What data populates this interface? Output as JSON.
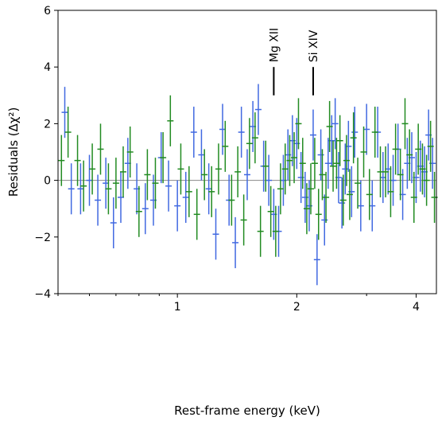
{
  "chart_data": {
    "type": "scatter",
    "xlabel": "Rest-frame energy (keV)",
    "ylabel": "Residuals (Δχ²)",
    "xscale": "log",
    "xlim": [
      0.5,
      4.5
    ],
    "ylim": [
      -4,
      6
    ],
    "xticks": [
      1,
      2,
      4
    ],
    "xtick_labels": [
      "1",
      "2",
      "4"
    ],
    "yticks": [
      -4,
      -2,
      0,
      2,
      4,
      6
    ],
    "ytick_labels": [
      "−4",
      "−2",
      "0",
      "2",
      "4",
      "6"
    ],
    "zero_line": 0,
    "grid": false,
    "legend": "none",
    "annotations": [
      {
        "label": "Mg XII",
        "x": 1.75,
        "y_bottom": 3.0,
        "y_top": 4.0
      },
      {
        "label": "Si XIV",
        "x": 2.2,
        "y_bottom": 3.0,
        "y_top": 4.0
      }
    ],
    "series": [
      {
        "color": "#4169e1",
        "points": [
          [
            0.52,
            2.4,
            0.9
          ],
          [
            0.54,
            -0.3,
            0.9
          ],
          [
            0.57,
            -0.3,
            0.9
          ],
          [
            0.6,
            0.0,
            0.9
          ],
          [
            0.63,
            -0.7,
            0.9
          ],
          [
            0.66,
            -0.1,
            0.9
          ],
          [
            0.69,
            -1.5,
            0.9
          ],
          [
            0.72,
            -0.6,
            0.9
          ],
          [
            0.75,
            0.6,
            0.9
          ],
          [
            0.79,
            -0.3,
            0.9
          ],
          [
            0.83,
            -1.0,
            0.9
          ],
          [
            0.87,
            -0.7,
            0.9
          ],
          [
            0.91,
            0.8,
            0.9
          ],
          [
            0.95,
            -0.2,
            0.9
          ],
          [
            1.0,
            -0.9,
            0.9
          ],
          [
            1.05,
            -0.6,
            0.9
          ],
          [
            1.1,
            1.7,
            0.9
          ],
          [
            1.15,
            0.9,
            0.9
          ],
          [
            1.2,
            -0.3,
            0.9
          ],
          [
            1.25,
            -1.9,
            0.9
          ],
          [
            1.3,
            1.8,
            0.9
          ],
          [
            1.35,
            -0.7,
            0.9
          ],
          [
            1.4,
            -2.2,
            0.9
          ],
          [
            1.45,
            1.7,
            0.9
          ],
          [
            1.5,
            0.2,
            0.9
          ],
          [
            1.55,
            1.9,
            0.9
          ],
          [
            1.6,
            2.5,
            0.9
          ],
          [
            1.65,
            0.5,
            0.9
          ],
          [
            1.7,
            0.0,
            0.9
          ],
          [
            1.75,
            -1.2,
            0.9
          ],
          [
            1.8,
            -1.8,
            0.9
          ],
          [
            1.85,
            0.0,
            0.9
          ],
          [
            1.9,
            0.9,
            0.9
          ],
          [
            1.95,
            1.4,
            0.9
          ],
          [
            2.0,
            1.3,
            0.9
          ],
          [
            2.05,
            0.1,
            0.9
          ],
          [
            2.1,
            -0.6,
            0.9
          ],
          [
            2.15,
            -0.9,
            0.9
          ],
          [
            2.2,
            1.6,
            0.9
          ],
          [
            2.25,
            -2.8,
            0.9
          ],
          [
            2.3,
            0.9,
            0.9
          ],
          [
            2.35,
            -1.4,
            0.9
          ],
          [
            2.4,
            0.6,
            0.9
          ],
          [
            2.45,
            1.4,
            0.9
          ],
          [
            2.5,
            2.0,
            0.9
          ],
          [
            2.55,
            0.1,
            0.9
          ],
          [
            2.6,
            -0.8,
            0.9
          ],
          [
            2.65,
            0.4,
            0.9
          ],
          [
            2.7,
            1.2,
            0.9
          ],
          [
            2.75,
            -0.4,
            0.9
          ],
          [
            2.8,
            1.7,
            0.9
          ],
          [
            2.9,
            -0.9,
            0.9
          ],
          [
            3.0,
            1.8,
            0.9
          ],
          [
            3.1,
            -0.9,
            0.9
          ],
          [
            3.2,
            1.7,
            0.9
          ],
          [
            3.3,
            0.1,
            0.9
          ],
          [
            3.4,
            0.4,
            0.9
          ],
          [
            3.5,
            0.0,
            0.9
          ],
          [
            3.6,
            1.1,
            0.9
          ],
          [
            3.7,
            -0.5,
            0.9
          ],
          [
            3.8,
            0.6,
            0.9
          ],
          [
            3.9,
            0.8,
            0.9
          ],
          [
            4.0,
            0.1,
            0.9
          ],
          [
            4.1,
            0.5,
            0.9
          ],
          [
            4.2,
            0.3,
            0.9
          ],
          [
            4.3,
            1.6,
            0.9
          ],
          [
            4.4,
            0.6,
            0.9
          ]
        ]
      },
      {
        "color": "#228b22",
        "points": [
          [
            0.51,
            0.7,
            0.9
          ],
          [
            0.53,
            1.7,
            0.9
          ],
          [
            0.56,
            0.7,
            0.9
          ],
          [
            0.58,
            -0.2,
            0.9
          ],
          [
            0.61,
            0.4,
            0.9
          ],
          [
            0.64,
            1.1,
            0.9
          ],
          [
            0.67,
            -0.3,
            0.9
          ],
          [
            0.7,
            -0.1,
            0.9
          ],
          [
            0.73,
            0.3,
            0.9
          ],
          [
            0.76,
            1.0,
            0.9
          ],
          [
            0.8,
            -1.1,
            0.9
          ],
          [
            0.84,
            0.2,
            0.9
          ],
          [
            0.88,
            -0.1,
            0.9
          ],
          [
            0.92,
            0.8,
            0.9
          ],
          [
            0.96,
            2.1,
            0.9
          ],
          [
            1.02,
            0.4,
            0.9
          ],
          [
            1.07,
            -0.4,
            0.9
          ],
          [
            1.12,
            -1.2,
            0.9
          ],
          [
            1.17,
            0.2,
            0.9
          ],
          [
            1.22,
            -0.4,
            0.9
          ],
          [
            1.27,
            0.4,
            0.9
          ],
          [
            1.32,
            1.2,
            0.9
          ],
          [
            1.37,
            -0.7,
            0.9
          ],
          [
            1.42,
            0.3,
            0.9
          ],
          [
            1.47,
            -1.4,
            0.9
          ],
          [
            1.52,
            1.3,
            0.9
          ],
          [
            1.57,
            1.5,
            0.9
          ],
          [
            1.62,
            -1.8,
            0.9
          ],
          [
            1.67,
            0.5,
            0.9
          ],
          [
            1.72,
            -1.1,
            0.9
          ],
          [
            1.77,
            -1.8,
            0.9
          ],
          [
            1.82,
            -0.3,
            0.9
          ],
          [
            1.87,
            0.4,
            0.9
          ],
          [
            1.92,
            0.7,
            0.9
          ],
          [
            1.97,
            0.8,
            0.9
          ],
          [
            2.02,
            2.0,
            0.9
          ],
          [
            2.07,
            0.6,
            0.9
          ],
          [
            2.12,
            -1.0,
            0.9
          ],
          [
            2.17,
            -0.3,
            0.9
          ],
          [
            2.22,
            0.6,
            0.9
          ],
          [
            2.27,
            -1.2,
            0.9
          ],
          [
            2.32,
            0.2,
            0.9
          ],
          [
            2.37,
            -0.6,
            0.9
          ],
          [
            2.42,
            1.9,
            0.9
          ],
          [
            2.47,
            0.5,
            0.9
          ],
          [
            2.52,
            0.6,
            0.9
          ],
          [
            2.57,
            1.4,
            0.9
          ],
          [
            2.62,
            -0.7,
            0.9
          ],
          [
            2.67,
            0.7,
            0.9
          ],
          [
            2.72,
            -0.5,
            0.9
          ],
          [
            2.78,
            1.5,
            0.9
          ],
          [
            2.85,
            -0.1,
            0.9
          ],
          [
            2.95,
            1.0,
            0.9
          ],
          [
            3.05,
            -0.5,
            0.9
          ],
          [
            3.15,
            1.7,
            0.9
          ],
          [
            3.25,
            0.3,
            0.9
          ],
          [
            3.35,
            0.3,
            0.9
          ],
          [
            3.45,
            -0.4,
            0.9
          ],
          [
            3.55,
            1.1,
            0.9
          ],
          [
            3.65,
            0.2,
            0.9
          ],
          [
            3.75,
            2.0,
            0.9
          ],
          [
            3.85,
            0.9,
            0.9
          ],
          [
            3.95,
            -0.6,
            0.9
          ],
          [
            4.05,
            1.1,
            0.9
          ],
          [
            4.15,
            0.4,
            0.9
          ],
          [
            4.25,
            0.0,
            0.9
          ],
          [
            4.35,
            1.2,
            0.9
          ],
          [
            4.45,
            -0.6,
            0.9
          ]
        ]
      }
    ]
  }
}
